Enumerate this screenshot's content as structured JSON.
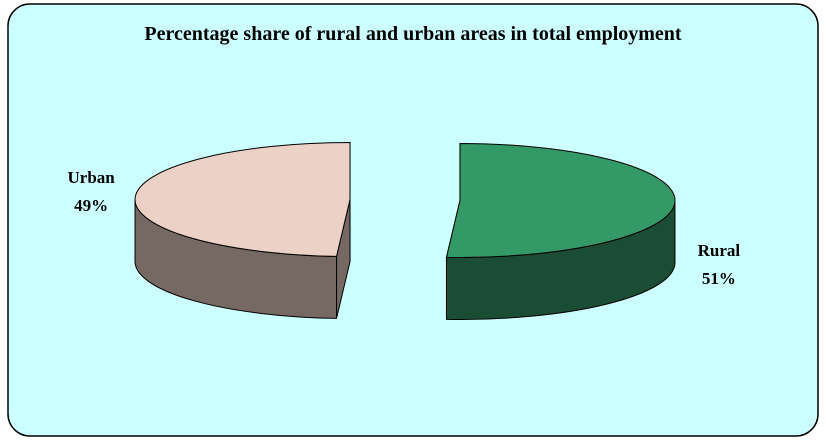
{
  "chart_data": {
    "type": "pie3d",
    "title": "Percentage share of rural and urban areas in total employment",
    "categories": [
      "Rural",
      "Urban"
    ],
    "values": [
      51,
      49
    ],
    "value_labels": [
      "51%",
      "49%"
    ],
    "colors": [
      "#339966",
      "#ecd2c6"
    ]
  }
}
